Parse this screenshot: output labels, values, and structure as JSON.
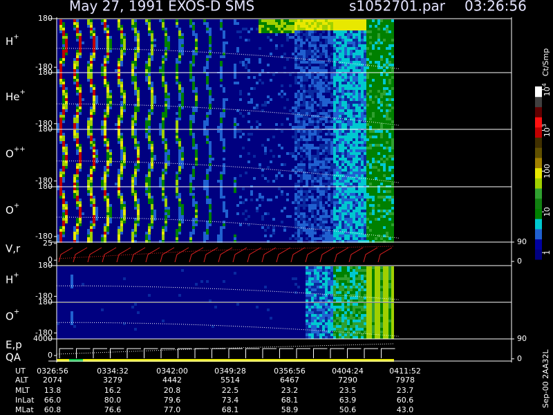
{
  "header": {
    "title": "May 27, 1991   EXOS-D SMS",
    "file": "s1052701.par",
    "time": "03:26:56"
  },
  "chart_data": [
    {
      "type": "spectrogram",
      "ylabel": {
        "text": "H",
        "sup": "+"
      },
      "ylim": [
        -220,
        180
      ],
      "yticks": [
        -180,
        180
      ]
    },
    {
      "type": "spectrogram",
      "ylabel": {
        "text": "He",
        "sup": "+"
      },
      "ylim": [
        -220,
        180
      ],
      "yticks": [
        -180,
        180
      ]
    },
    {
      "type": "spectrogram",
      "ylabel": {
        "text": "O",
        "sup": "++"
      },
      "ylim": [
        -220,
        180
      ],
      "yticks": [
        -180,
        180
      ]
    },
    {
      "type": "spectrogram",
      "ylabel": {
        "text": "O",
        "sup": "+"
      },
      "ylim": [
        -220,
        180
      ],
      "yticks": [
        -180,
        180
      ]
    },
    {
      "type": "line",
      "ylabel": "V,r",
      "ylim": [
        -6,
        27
      ],
      "yticks": [
        0,
        25
      ],
      "y2lim": [
        -13,
        90
      ],
      "y2ticks": [
        0,
        90
      ]
    },
    {
      "type": "spectrogram",
      "ylabel": {
        "text": "H",
        "sup": "+"
      },
      "ylim": [
        -250,
        180
      ],
      "yticks": [
        -180,
        180
      ],
      "late": true
    },
    {
      "type": "spectrogram",
      "ylabel": {
        "text": "O",
        "sup": "+"
      },
      "ylim": [
        -250,
        180
      ],
      "yticks": [
        -180,
        180
      ],
      "late": true
    },
    {
      "type": "step",
      "ylabel": "E,p",
      "ylabel2": "QA",
      "ylim": [
        -1330,
        4000
      ],
      "yticks": [
        0,
        4000
      ],
      "y2lim": [
        -10,
        90
      ],
      "y2ticks": [
        0,
        90
      ]
    }
  ],
  "colorbar": {
    "unit": "Ct/Smp",
    "log": true,
    "clim": [
      0.68,
      12000
    ],
    "ticks": [
      {
        "value": 1,
        "label": "1"
      },
      {
        "value": 10,
        "label": "10"
      },
      {
        "value": 100,
        "label": "100"
      },
      {
        "value": 1000,
        "label": "10",
        "exp": "3"
      },
      {
        "value": 10000,
        "label": "10",
        "exp": "4"
      }
    ]
  },
  "footer": {
    "rows": [
      [
        "UT",
        "0326:56",
        "0334:32",
        "0342:00",
        "0349:28",
        "0356:56",
        "0404:24",
        "0411:52"
      ],
      [
        "ALT",
        "2074",
        "3279",
        "4442",
        "5514",
        "6467",
        "7290",
        "7978"
      ],
      [
        "MLT",
        "13.8",
        "16.2",
        "20.8",
        "22.5",
        "23.2",
        "23.5",
        "23.7"
      ],
      [
        "InLat",
        "66.0",
        "80.0",
        "79.6",
        "73.4",
        "68.1",
        "63.9",
        "60.6"
      ],
      [
        "MLat",
        "60.8",
        "76.6",
        "77.0",
        "68.1",
        "58.9",
        "50.6",
        "43.0"
      ]
    ]
  },
  "version": "Sep-00  2AA32L"
}
